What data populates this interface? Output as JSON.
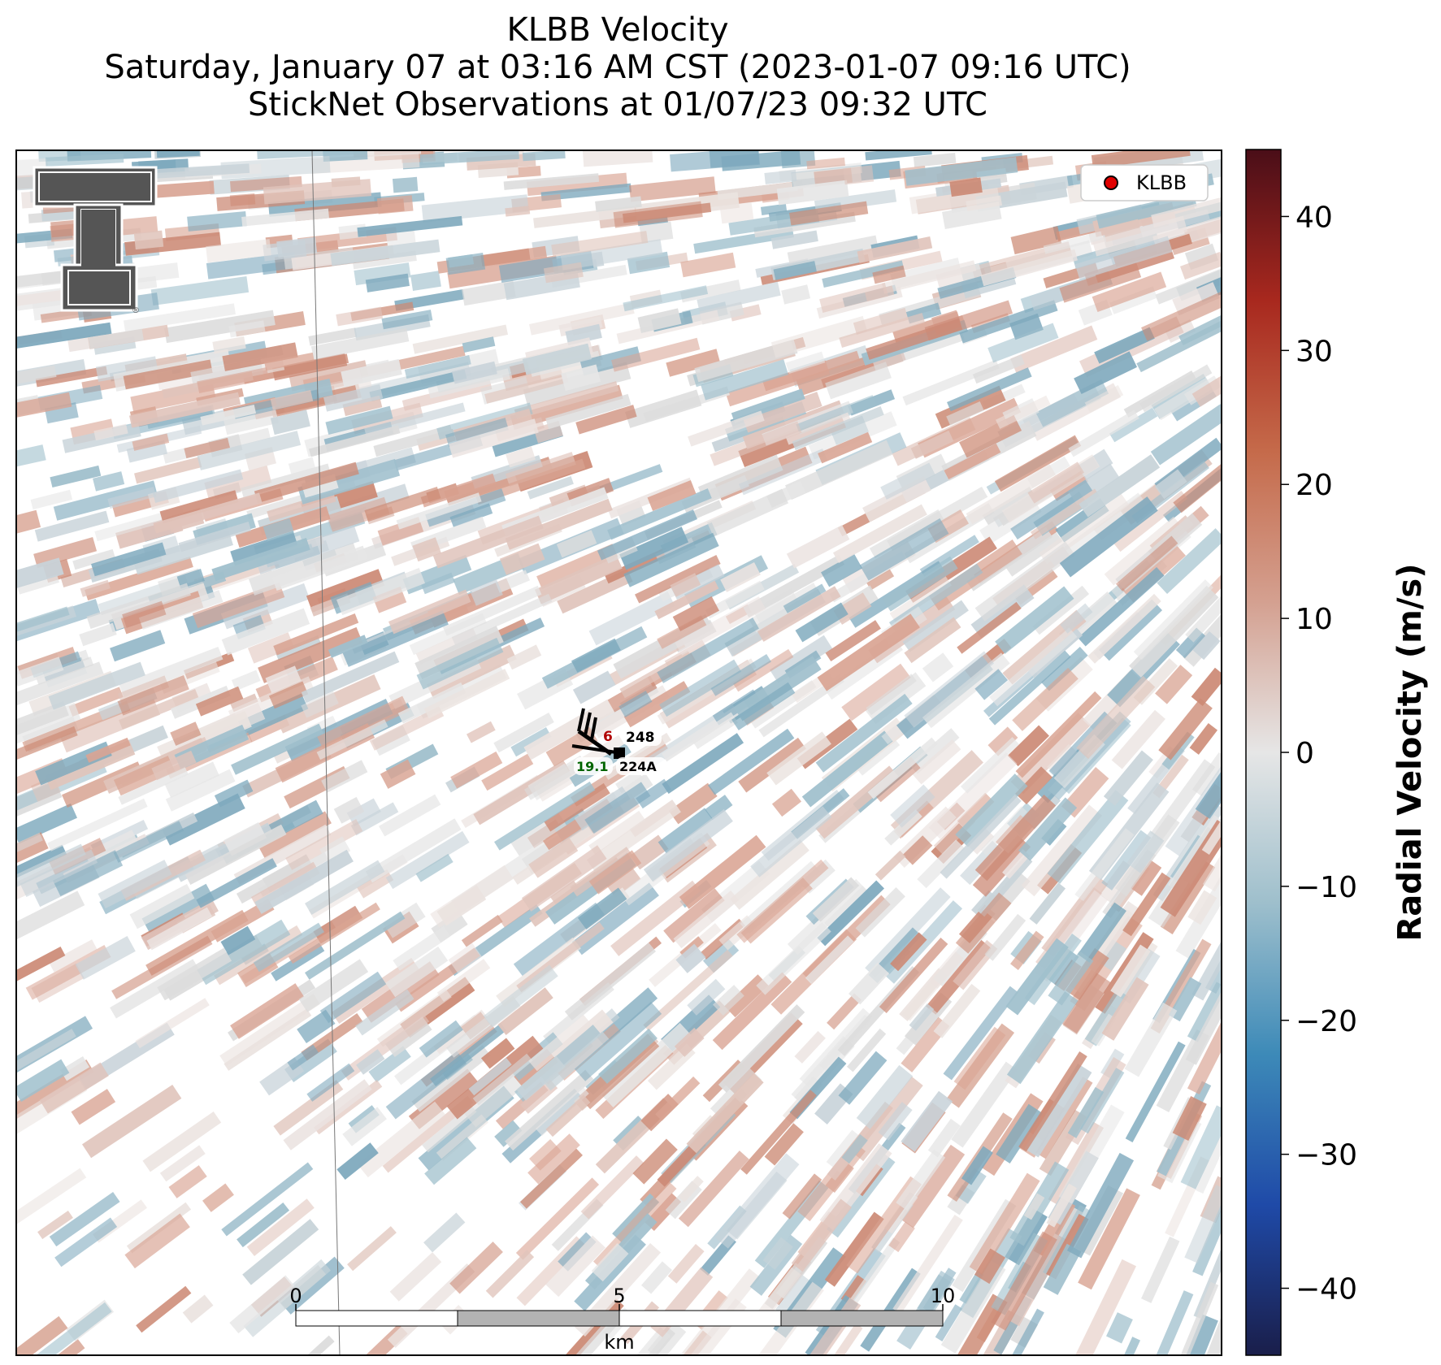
{
  "title": {
    "line1": "KLBB Velocity",
    "line2": "Saturday, January 07 at 03:16 AM CST (2023-01-07 09:16 UTC)",
    "line3": "StickNet Observations at 01/07/23 09:32 UTC"
  },
  "legend": {
    "label": "KLBB",
    "marker_color": "#e00000"
  },
  "logo": {
    "name": "Texas Tech Double T",
    "color": "#555555"
  },
  "stations": [
    {
      "id": "248",
      "temp_value": "6",
      "temp_color": "#b00000"
    },
    {
      "id": "224A",
      "dewpoint_value": "19.1",
      "dewpoint_color": "#006400"
    }
  ],
  "scalebar": {
    "ticks": [
      "0",
      "5",
      "10"
    ],
    "unit": "km"
  },
  "colorbar": {
    "label": "Radial Velocity (m/s)",
    "range": [
      -45,
      45
    ],
    "ticks": [
      {
        "value": 40,
        "label": "40"
      },
      {
        "value": 30,
        "label": "30"
      },
      {
        "value": 20,
        "label": "20"
      },
      {
        "value": 10,
        "label": "10"
      },
      {
        "value": 0,
        "label": "0"
      },
      {
        "value": -10,
        "label": "−10"
      },
      {
        "value": -20,
        "label": "−20"
      },
      {
        "value": -30,
        "label": "−30"
      },
      {
        "value": -40,
        "label": "−40"
      }
    ],
    "colors": [
      "#1a1e4a",
      "#1f4aa8",
      "#3d8ab8",
      "#9ebfcc",
      "#e6e6e6",
      "#d4a090",
      "#c56a4a",
      "#a8281e",
      "#4a0e18"
    ]
  }
}
